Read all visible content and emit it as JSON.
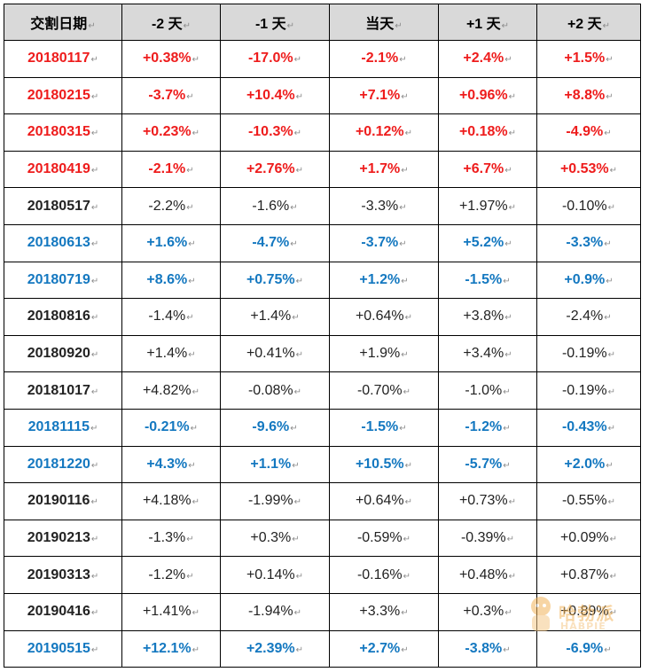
{
  "table": {
    "headers": [
      "交割日期",
      "-2 天",
      "-1 天",
      "当天",
      "+1 天",
      "+2 天"
    ],
    "rows": [
      {
        "style": "red",
        "cells": [
          "20180117",
          "+0.38%",
          "-17.0%",
          "-2.1%",
          "+2.4%",
          "+1.5%"
        ]
      },
      {
        "style": "red",
        "cells": [
          "20180215",
          "-3.7%",
          "+10.4%",
          "+7.1%",
          "+0.96%",
          "+8.8%"
        ]
      },
      {
        "style": "red",
        "cells": [
          "20180315",
          "+0.23%",
          "-10.3%",
          "+0.12%",
          "+0.18%",
          "-4.9%"
        ]
      },
      {
        "style": "red",
        "cells": [
          "20180419",
          "-2.1%",
          "+2.76%",
          "+1.7%",
          "+6.7%",
          "+0.53%"
        ]
      },
      {
        "style": "black",
        "cells": [
          "20180517",
          "-2.2%",
          "-1.6%",
          "-3.3%",
          "+1.97%",
          "-0.10%"
        ]
      },
      {
        "style": "blue",
        "cells": [
          "20180613",
          "+1.6%",
          "-4.7%",
          "-3.7%",
          "+5.2%",
          "-3.3%"
        ]
      },
      {
        "style": "blue",
        "cells": [
          "20180719",
          "+8.6%",
          "+0.75%",
          "+1.2%",
          "-1.5%",
          "+0.9%"
        ]
      },
      {
        "style": "black",
        "cells": [
          "20180816",
          "-1.4%",
          "+1.4%",
          "+0.64%",
          "+3.8%",
          "-2.4%"
        ]
      },
      {
        "style": "black",
        "cells": [
          "20180920",
          "+1.4%",
          "+0.41%",
          "+1.9%",
          "+3.4%",
          "-0.19%"
        ]
      },
      {
        "style": "black",
        "cells": [
          "20181017",
          "+4.82%",
          "-0.08%",
          "-0.70%",
          "-1.0%",
          "-0.19%"
        ]
      },
      {
        "style": "blue",
        "cells": [
          "20181115",
          "-0.21%",
          "-9.6%",
          "-1.5%",
          "-1.2%",
          "-0.43%"
        ]
      },
      {
        "style": "blue",
        "cells": [
          "20181220",
          "+4.3%",
          "+1.1%",
          "+10.5%",
          "-5.7%",
          "+2.0%"
        ]
      },
      {
        "style": "black",
        "cells": [
          "20190116",
          "+4.18%",
          "-1.99%",
          "+0.64%",
          "+0.73%",
          "-0.55%"
        ]
      },
      {
        "style": "black",
        "cells": [
          "20190213",
          "-1.3%",
          "+0.3%",
          "-0.59%",
          "-0.39%",
          "+0.09%"
        ]
      },
      {
        "style": "black",
        "cells": [
          "20190313",
          "-1.2%",
          "+0.14%",
          "-0.16%",
          "+0.48%",
          "+0.87%"
        ]
      },
      {
        "style": "black",
        "cells": [
          "20190416",
          "+1.41%",
          "-1.94%",
          "+3.3%",
          "+0.3%",
          "+0.89%"
        ]
      },
      {
        "style": "blue",
        "cells": [
          "20190515",
          "+12.1%",
          "+2.39%",
          "+2.7%",
          "-3.8%",
          "-6.9%"
        ]
      }
    ]
  },
  "colors": {
    "red": "#ee1c1c",
    "blue": "#1478c0",
    "black": "#222222",
    "header_bg": "#d9d9d9"
  },
  "paragraph_mark": "↵",
  "watermark": {
    "text": "哈勃派",
    "sub": "HABPIE",
    "icon": "mascot-icon"
  }
}
